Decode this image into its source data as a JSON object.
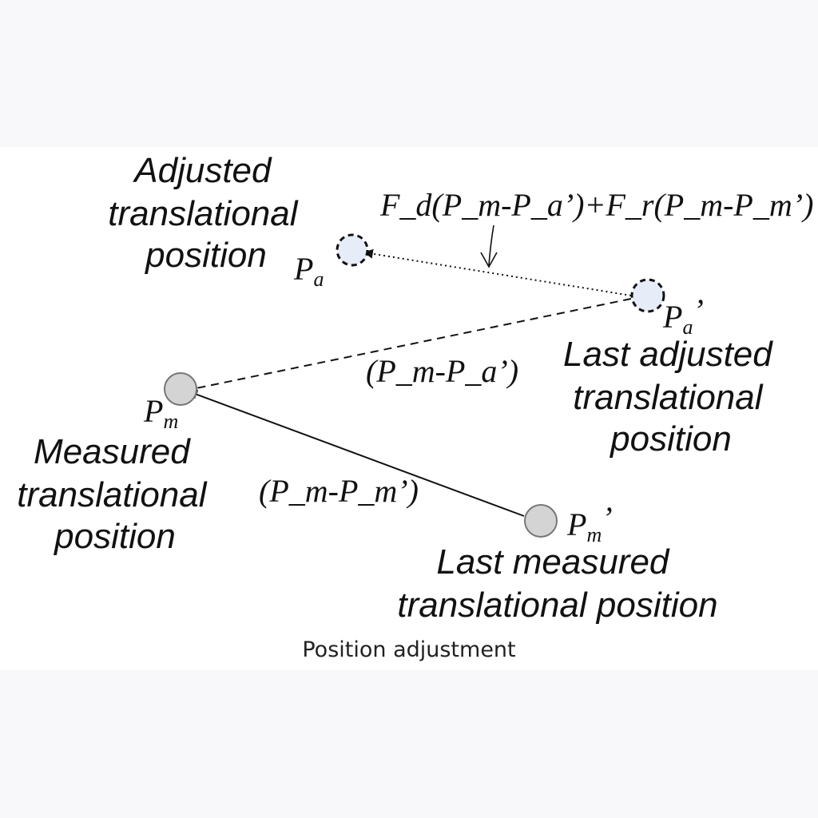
{
  "caption": "Position adjustment",
  "nodes": {
    "pa": {
      "symbol": "P",
      "sub": "a",
      "prime": "",
      "description": [
        "Adjusted",
        "translational",
        "position"
      ]
    },
    "pa_last": {
      "symbol": "P",
      "sub": "a",
      "prime": "’",
      "description": [
        "Last adjusted",
        "translational",
        "position"
      ]
    },
    "pm": {
      "symbol": "P",
      "sub": "m",
      "prime": "",
      "description": [
        "Measured",
        "translational",
        "position"
      ]
    },
    "pm_last": {
      "symbol": "P",
      "sub": "m",
      "prime": "’",
      "description": [
        "Last measured",
        "translational position"
      ]
    }
  },
  "edges": {
    "adjustment_label": "F_d(P_m-P_a’)+F_r(P_m-P_m’)",
    "pm_minus_pa_label": "(P_m-P_a’)",
    "pm_minus_pm_label": "(P_m-P_m’)"
  },
  "colors": {
    "adjusted_fill": "#e6ecf8",
    "measured_fill": "#d4d4d4",
    "stroke": "#111111"
  }
}
